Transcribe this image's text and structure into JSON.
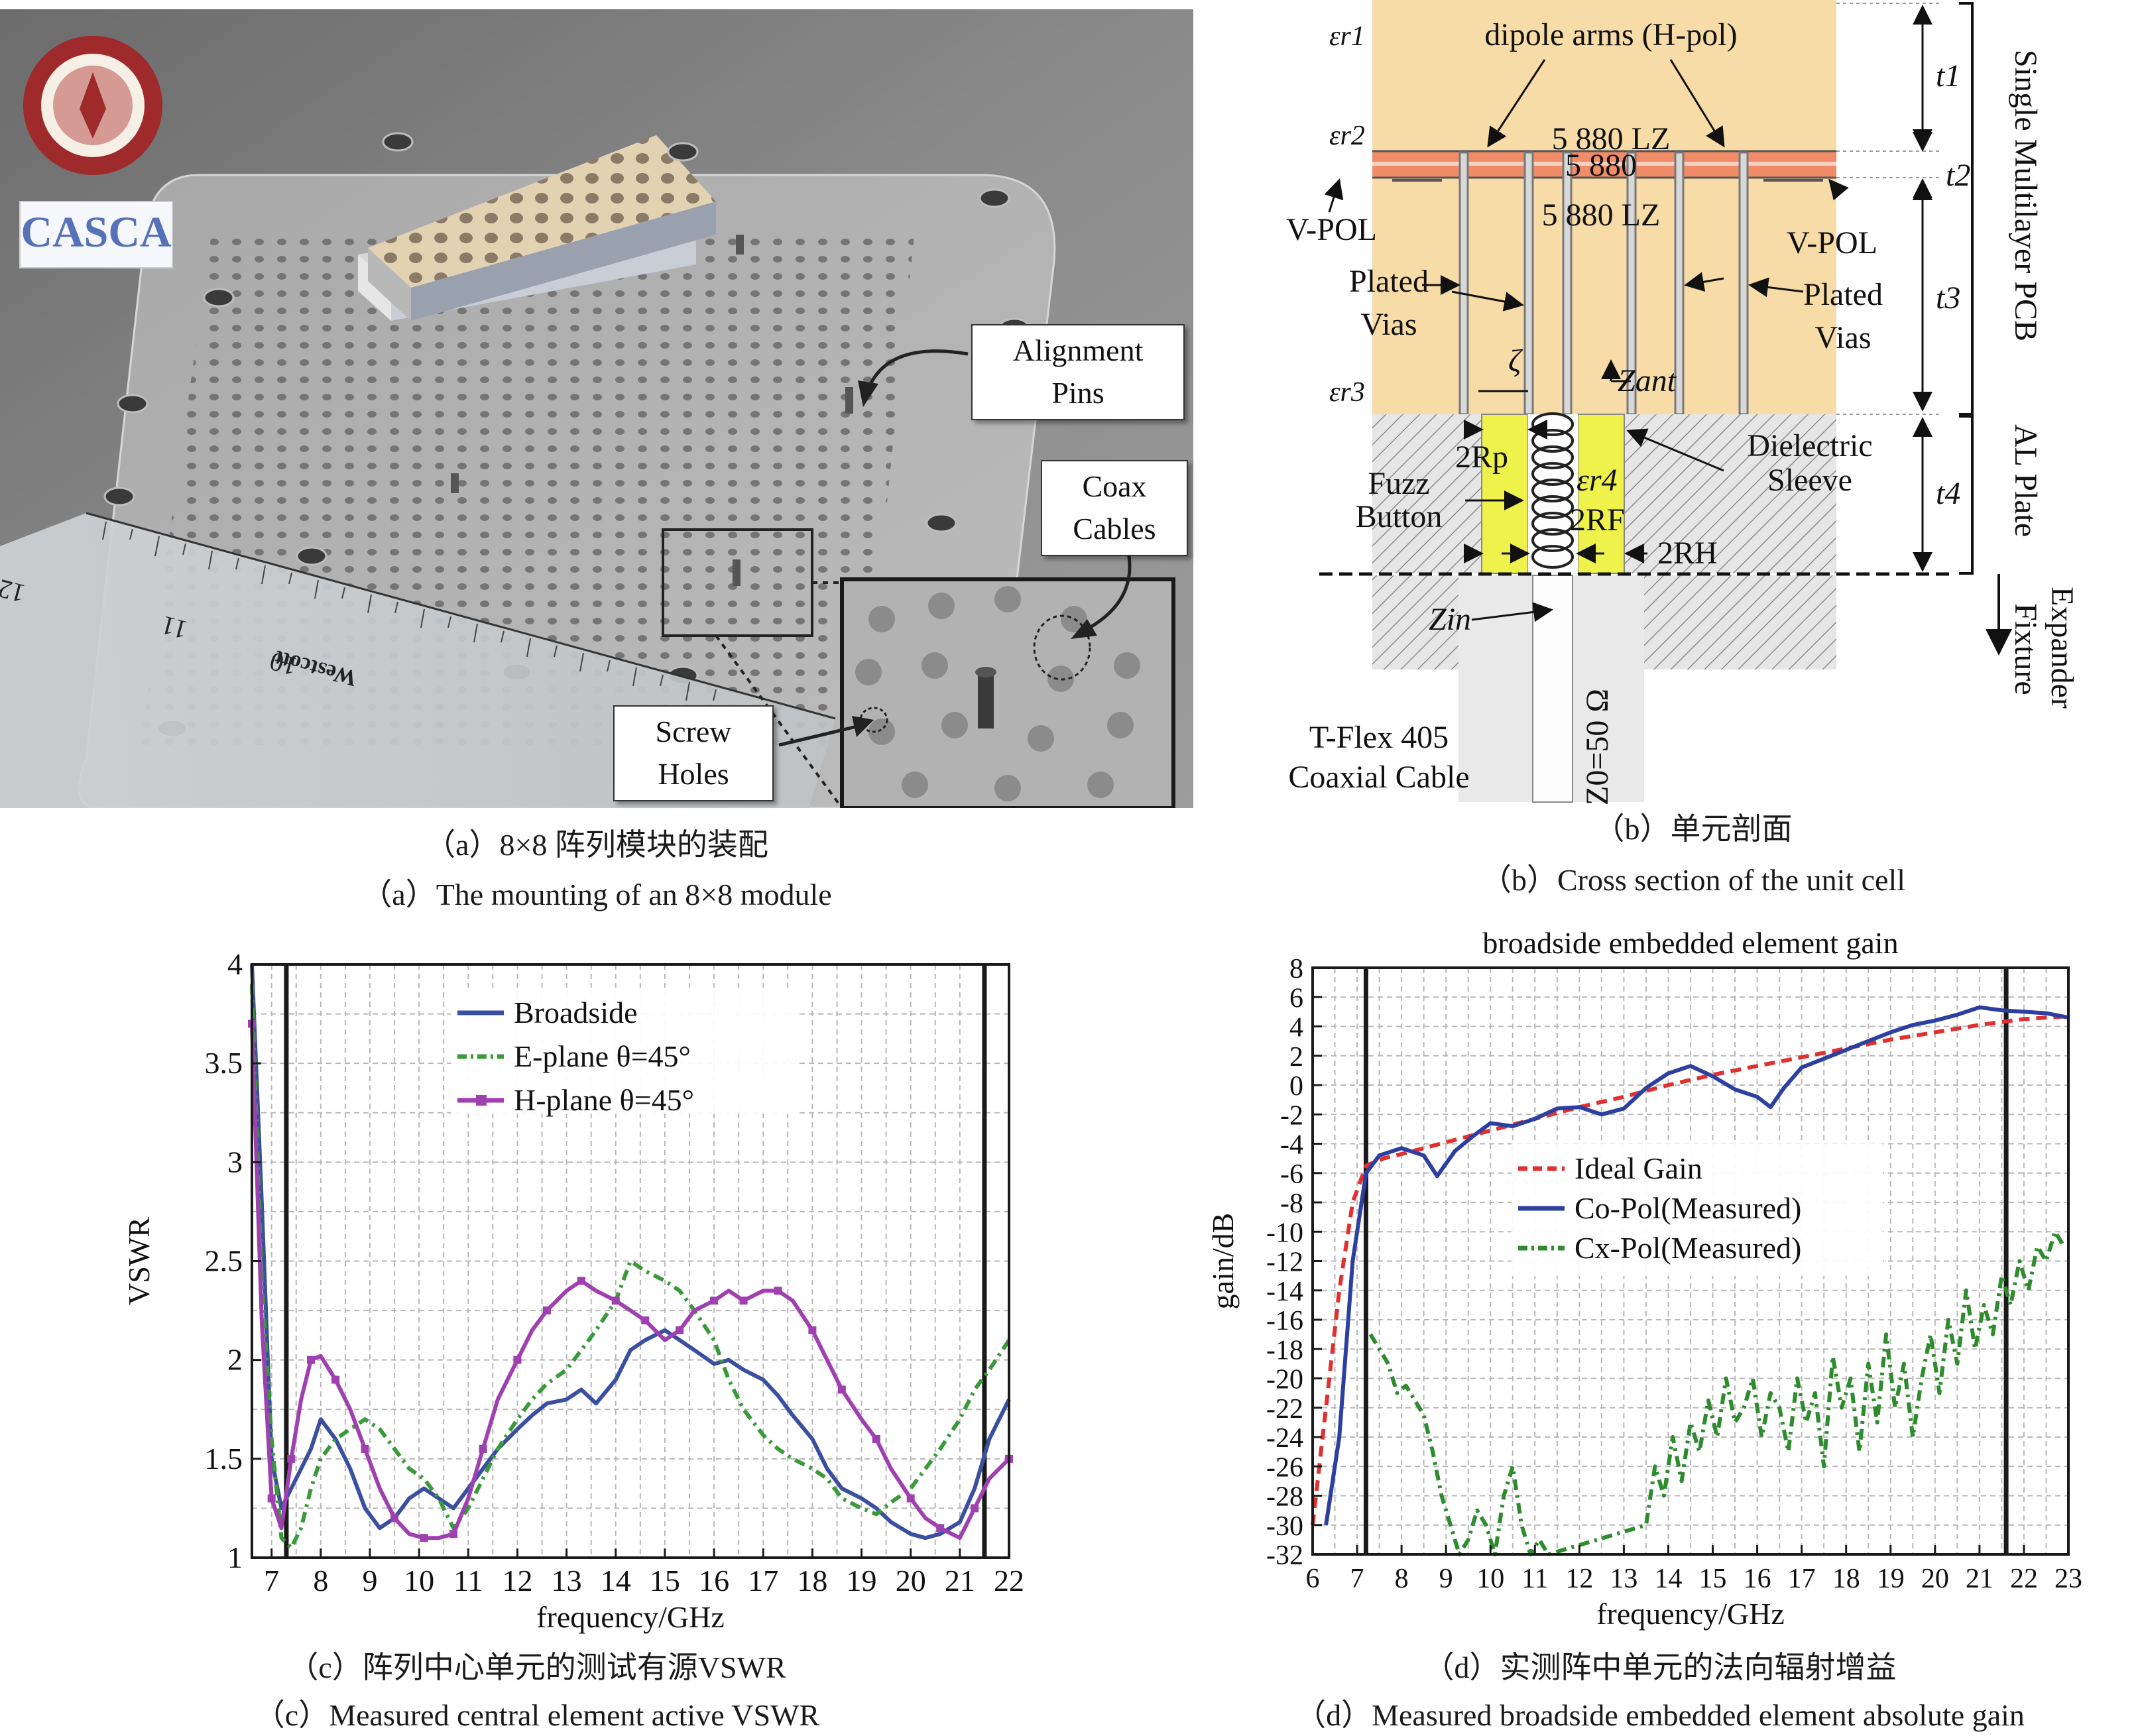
{
  "panels": {
    "a": {
      "caption_cn": "（a）8×8 阵列模块的装配",
      "caption_en": "（a）The mounting of an 8×8 module",
      "labels": {
        "alignment_pins": [
          "Alignment",
          "Pins"
        ],
        "coax_cables": [
          "Coax",
          "Cables"
        ],
        "screw_holes": [
          "Screw",
          "Holes"
        ]
      },
      "logo_text": "CASCA",
      "ruler_text": "Westcott",
      "ruler_numbers": [
        "12",
        "11",
        "10"
      ]
    },
    "b": {
      "caption_cn": "（b）单元剖面",
      "caption_en": "（b）Cross section of the unit cell",
      "labels": {
        "dipole_arms": "dipole arms (H-pol)",
        "lz_top": "5 880 LZ",
        "mid": "5 880",
        "lz_bottom": "5 880 LZ",
        "vpol_left": "V-POL",
        "vpol_right": "V-POL",
        "plated_vias_left": [
          "Plated",
          "Vias"
        ],
        "plated_vias_right": [
          "Plated",
          "Vias"
        ],
        "fuzz_button": [
          "Fuzz",
          "Button"
        ],
        "dielectric_sleeve": [
          "Dielectric",
          "Sleeve"
        ],
        "coax_cable": [
          "T-Flex 405",
          "Coaxial Cable"
        ],
        "z0": "Z0=50 Ω",
        "zin": "Zin",
        "zant": "Zant",
        "zeta": "ζ",
        "two_rp": "2Rp",
        "two_rf": "2RF",
        "two_rh": "2RH",
        "er1": "εr1",
        "er2": "εr2",
        "er3": "εr3",
        "er4": "εr4",
        "t1": "t1",
        "t2": "t2",
        "t3": "t3",
        "t4": "t4",
        "single_pcb": "Single Multilayer PCB",
        "al_plate": "AL Plate",
        "expander": [
          "Expander",
          "Fixture"
        ]
      }
    },
    "c": {
      "caption_cn": "（c）阵列中心单元的测试有源VSWR",
      "caption_en": "（c）Measured central element active VSWR"
    },
    "d": {
      "caption_cn": "（d）实测阵中单元的法向辐射增益",
      "caption_en": "（d）Measured broadside embedded element absolute gain"
    }
  },
  "chart_data": [
    {
      "type": "line",
      "title": "",
      "xlabel": "frequency/GHz",
      "ylabel": "VSWR",
      "xlim": [
        6.6,
        22
      ],
      "ylim": [
        1,
        4
      ],
      "xticks": [
        7,
        8,
        9,
        10,
        11,
        12,
        13,
        14,
        15,
        16,
        17,
        18,
        19,
        20,
        21,
        22
      ],
      "yticks": [
        1,
        1.5,
        2,
        2.5,
        3,
        3.5,
        4
      ],
      "ytick_labels": [
        "1",
        "1.5",
        "2",
        "2.5",
        "3",
        "3.5",
        "4"
      ],
      "grid": true,
      "legend_position": "top-center",
      "vlines": [
        7.3,
        21.5
      ],
      "series": [
        {
          "name": "Broadside",
          "color": "#3a4fa0",
          "style": "solid",
          "x": [
            6.6,
            6.8,
            7.0,
            7.2,
            7.4,
            7.6,
            7.8,
            8.0,
            8.3,
            8.6,
            8.9,
            9.2,
            9.5,
            9.8,
            10.1,
            10.4,
            10.7,
            11.0,
            11.3,
            11.6,
            12.0,
            12.3,
            12.6,
            13.0,
            13.3,
            13.6,
            14.0,
            14.3,
            14.6,
            15.0,
            15.3,
            15.6,
            16.0,
            16.3,
            16.6,
            17.0,
            17.3,
            17.6,
            18.0,
            18.3,
            18.6,
            19.0,
            19.3,
            19.6,
            20.0,
            20.3,
            20.6,
            21.0,
            21.3,
            21.6,
            22.0
          ],
          "values": [
            4.0,
            2.8,
            1.5,
            1.25,
            1.35,
            1.45,
            1.55,
            1.7,
            1.6,
            1.45,
            1.25,
            1.15,
            1.2,
            1.3,
            1.35,
            1.3,
            1.25,
            1.35,
            1.45,
            1.55,
            1.65,
            1.72,
            1.78,
            1.8,
            1.85,
            1.78,
            1.9,
            2.05,
            2.1,
            2.15,
            2.1,
            2.05,
            1.98,
            2.0,
            1.95,
            1.9,
            1.82,
            1.72,
            1.6,
            1.45,
            1.35,
            1.3,
            1.25,
            1.18,
            1.12,
            1.1,
            1.12,
            1.18,
            1.35,
            1.6,
            1.8
          ]
        },
        {
          "name": "E-plane θ=45°",
          "color": "#3a9a3a",
          "style": "dashdot",
          "x": [
            6.6,
            6.8,
            7.0,
            7.2,
            7.4,
            7.6,
            7.8,
            8.0,
            8.3,
            8.6,
            8.9,
            9.2,
            9.5,
            9.8,
            10.1,
            10.4,
            10.7,
            11.0,
            11.3,
            11.6,
            12.0,
            12.3,
            12.6,
            13.0,
            13.3,
            13.6,
            14.0,
            14.3,
            14.6,
            15.0,
            15.3,
            15.6,
            16.0,
            16.3,
            16.6,
            17.0,
            17.3,
            17.6,
            18.0,
            18.3,
            18.6,
            19.0,
            19.3,
            19.6,
            20.0,
            20.3,
            20.6,
            21.0,
            21.3,
            21.6,
            22.0
          ],
          "values": [
            3.9,
            2.4,
            1.6,
            1.1,
            1.05,
            1.15,
            1.35,
            1.5,
            1.6,
            1.65,
            1.7,
            1.65,
            1.55,
            1.45,
            1.4,
            1.3,
            1.15,
            1.25,
            1.4,
            1.55,
            1.7,
            1.8,
            1.88,
            1.95,
            2.05,
            2.15,
            2.3,
            2.5,
            2.45,
            2.4,
            2.35,
            2.25,
            2.1,
            1.9,
            1.75,
            1.62,
            1.55,
            1.5,
            1.45,
            1.4,
            1.3,
            1.25,
            1.22,
            1.28,
            1.35,
            1.45,
            1.55,
            1.7,
            1.85,
            1.95,
            2.1
          ]
        },
        {
          "name": "H-plane θ=45°",
          "color": "#a040b0",
          "style": "solid-square",
          "x": [
            6.6,
            6.8,
            7.0,
            7.2,
            7.4,
            7.6,
            7.8,
            8.0,
            8.3,
            8.6,
            8.9,
            9.2,
            9.5,
            9.8,
            10.1,
            10.4,
            10.7,
            11.0,
            11.3,
            11.6,
            12.0,
            12.3,
            12.6,
            13.0,
            13.3,
            13.6,
            14.0,
            14.3,
            14.6,
            15.0,
            15.3,
            15.6,
            16.0,
            16.3,
            16.6,
            17.0,
            17.3,
            17.6,
            18.0,
            18.3,
            18.6,
            19.0,
            19.3,
            19.6,
            20.0,
            20.3,
            20.6,
            21.0,
            21.3,
            21.6,
            22.0
          ],
          "values": [
            3.7,
            2.2,
            1.3,
            1.15,
            1.5,
            1.8,
            2.0,
            2.02,
            1.9,
            1.75,
            1.55,
            1.35,
            1.2,
            1.12,
            1.1,
            1.1,
            1.12,
            1.3,
            1.55,
            1.8,
            2.0,
            2.15,
            2.25,
            2.35,
            2.4,
            2.35,
            2.3,
            2.25,
            2.2,
            2.1,
            2.15,
            2.25,
            2.3,
            2.35,
            2.3,
            2.35,
            2.35,
            2.3,
            2.15,
            2.0,
            1.85,
            1.7,
            1.6,
            1.45,
            1.3,
            1.2,
            1.15,
            1.1,
            1.25,
            1.4,
            1.5
          ]
        }
      ]
    },
    {
      "type": "line",
      "title": "broadside embedded element gain",
      "xlabel": "frequency/GHz",
      "ylabel": "gain/dB",
      "xlim": [
        6,
        23
      ],
      "ylim": [
        -32,
        8
      ],
      "xticks": [
        6,
        7,
        8,
        9,
        10,
        11,
        12,
        13,
        14,
        15,
        16,
        17,
        18,
        19,
        20,
        21,
        22,
        23
      ],
      "yticks": [
        -32,
        -30,
        -28,
        -26,
        -24,
        -22,
        -20,
        -18,
        -16,
        -14,
        -12,
        -10,
        -8,
        -6,
        -4,
        -2,
        0,
        2,
        4,
        6,
        8
      ],
      "grid": true,
      "legend_position": "center",
      "vlines": [
        7.2,
        21.6
      ],
      "series": [
        {
          "name": "Ideal Gain",
          "color": "#e03030",
          "style": "dashed",
          "x": [
            6.0,
            6.3,
            6.6,
            6.9,
            7.2,
            7.6,
            8.0,
            9.0,
            10.0,
            11.0,
            12.0,
            13.0,
            14.0,
            15.0,
            16.0,
            17.0,
            18.0,
            19.0,
            20.0,
            21.0,
            22.0,
            23.0
          ],
          "values": [
            -30,
            -22,
            -14,
            -8,
            -5.5,
            -5.0,
            -4.7,
            -3.9,
            -3.1,
            -2.3,
            -1.5,
            -0.8,
            0.0,
            0.7,
            1.3,
            1.9,
            2.5,
            3.1,
            3.6,
            4.1,
            4.5,
            4.7
          ]
        },
        {
          "name": "Co-Pol(Measured)",
          "color": "#2d3fa0",
          "style": "solid",
          "x": [
            6.3,
            6.6,
            6.9,
            7.2,
            7.5,
            8.0,
            8.5,
            8.8,
            9.2,
            9.6,
            10.0,
            10.5,
            11.0,
            11.5,
            12.0,
            12.5,
            13.0,
            13.5,
            14.0,
            14.5,
            15.0,
            15.5,
            16.0,
            16.3,
            16.6,
            17.0,
            17.5,
            18.0,
            18.5,
            19.0,
            19.5,
            20.0,
            20.5,
            21.0,
            21.5,
            22.0,
            22.5,
            23.0
          ],
          "values": [
            -30,
            -24,
            -12,
            -6,
            -4.8,
            -4.3,
            -4.8,
            -6.2,
            -4.5,
            -3.5,
            -2.6,
            -2.8,
            -2.3,
            -1.6,
            -1.5,
            -2.0,
            -1.6,
            -0.2,
            0.8,
            1.3,
            0.6,
            -0.3,
            -0.8,
            -1.5,
            -0.2,
            1.2,
            1.8,
            2.4,
            3.0,
            3.6,
            4.1,
            4.4,
            4.8,
            5.3,
            5.1,
            5.0,
            4.9,
            4.6
          ]
        },
        {
          "name": "Cx-Pol(Measured)",
          "color": "#2e8b2e",
          "style": "dashdot",
          "x": [
            7.3,
            7.5,
            7.7,
            7.9,
            8.1,
            8.3,
            8.5,
            8.7,
            8.9,
            9.1,
            9.3,
            9.5,
            9.7,
            9.9,
            10.1,
            10.3,
            10.5,
            10.7,
            10.9,
            11.1,
            11.3,
            13.5,
            13.7,
            13.9,
            14.1,
            14.3,
            14.5,
            14.7,
            14.9,
            15.1,
            15.3,
            15.5,
            15.7,
            15.9,
            16.1,
            16.3,
            16.5,
            16.7,
            16.9,
            17.1,
            17.3,
            17.5,
            17.7,
            17.9,
            18.1,
            18.3,
            18.5,
            18.7,
            18.9,
            19.1,
            19.3,
            19.5,
            19.7,
            19.9,
            20.1,
            20.3,
            20.5,
            20.7,
            20.9,
            21.1,
            21.3,
            21.5,
            21.7,
            21.9,
            22.1,
            22.3,
            22.5,
            22.7,
            22.9
          ],
          "values": [
            -17,
            -18,
            -19,
            -21,
            -20.5,
            -21.5,
            -22.5,
            -25,
            -28,
            -30,
            -32,
            -31,
            -29,
            -30,
            -32,
            -28,
            -26,
            -30,
            -32,
            -31,
            -32,
            -30,
            -26,
            -28,
            -24,
            -27,
            -23,
            -25,
            -21.5,
            -24,
            -20,
            -23,
            -22,
            -20,
            -24,
            -21,
            -22,
            -25,
            -20,
            -23,
            -21,
            -26,
            -18.5,
            -22,
            -20,
            -25,
            -19,
            -23,
            -17,
            -22,
            -19,
            -24,
            -20,
            -17,
            -21,
            -16,
            -19,
            -14,
            -18,
            -15,
            -17,
            -13,
            -15,
            -12,
            -14,
            -11,
            -12,
            -10,
            -11
          ]
        }
      ]
    }
  ]
}
